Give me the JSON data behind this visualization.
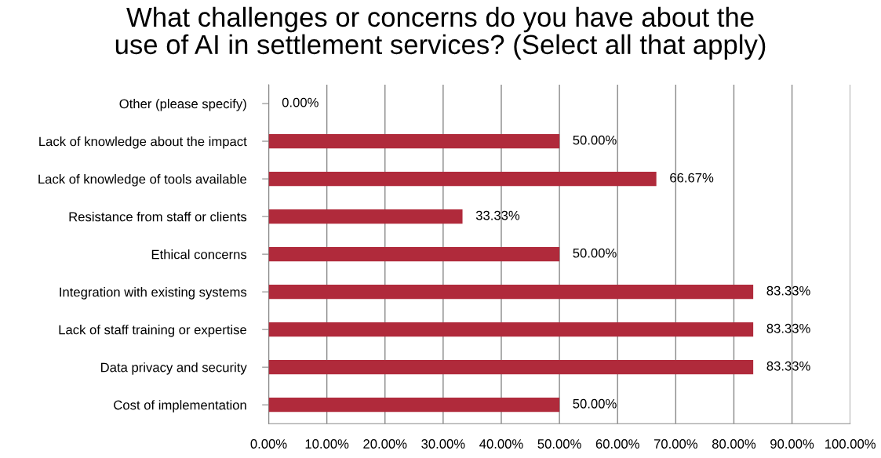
{
  "chart_data": {
    "type": "bar",
    "orientation": "horizontal",
    "title": "What challenges or concerns do you have about the\nuse of AI in settlement services? (Select all that apply)",
    "categories": [
      "Other (please specify)",
      "Lack of knowledge about the impact",
      "Lack of knowledge of tools available",
      "Resistance from staff or clients",
      "Ethical concerns",
      "Integration with existing systems",
      "Lack of staff training or expertise",
      "Data privacy and security",
      "Cost of implementation"
    ],
    "values": [
      0,
      50,
      66.67,
      33.33,
      50,
      83.33,
      83.33,
      83.33,
      50
    ],
    "value_labels": [
      "0.00%",
      "50.00%",
      "66.67%",
      "33.33%",
      "50.00%",
      "83.33%",
      "83.33%",
      "83.33%",
      "50.00%"
    ],
    "color": "#b02a3b",
    "xlim": [
      0,
      100
    ],
    "xticks": [
      {
        "value": 0,
        "label": "0.00%"
      },
      {
        "value": 10,
        "label": "10.00%"
      },
      {
        "value": 20,
        "label": "20.00%"
      },
      {
        "value": 30,
        "label": "30.00%"
      },
      {
        "value": 40,
        "label": "40.00%"
      },
      {
        "value": 50,
        "label": "50.00%"
      },
      {
        "value": 60,
        "label": "60.00%"
      },
      {
        "value": 70,
        "label": "70.00%"
      },
      {
        "value": 80,
        "label": "80.00%"
      },
      {
        "value": 90,
        "label": "90.00%"
      },
      {
        "value": 100,
        "label": "100.00%"
      }
    ],
    "grid": "x",
    "legend": false
  }
}
